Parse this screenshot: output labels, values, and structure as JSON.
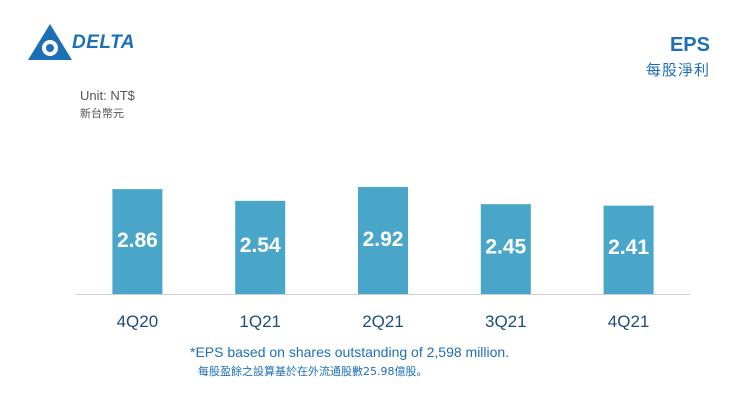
{
  "brand": {
    "name": "DELTA"
  },
  "header": {
    "title_en": "EPS",
    "title_zh": "每股淨利"
  },
  "unit": {
    "en": "Unit: NT$",
    "zh": "新台幣元"
  },
  "footnote": {
    "en": "*EPS based on shares outstanding of 2,598 million.",
    "zh": "每股盈餘之設算基於在外流通股數25.98億股。"
  },
  "colors": {
    "bar": "#4aa6c9",
    "label": "#ffffff",
    "axis": "#cfcfcf",
    "tick": "#1d4e7a",
    "brand": "#1d6fb8"
  },
  "chart_data": {
    "type": "bar",
    "title": "EPS",
    "xlabel": "",
    "ylabel": "Unit: NT$",
    "categories": [
      "4Q20",
      "1Q21",
      "2Q21",
      "3Q21",
      "4Q21"
    ],
    "values": [
      2.86,
      2.54,
      2.92,
      2.45,
      2.41
    ],
    "value_labels": [
      "2.86",
      "2.54",
      "2.92",
      "2.45",
      "2.41"
    ],
    "ylim": [
      0,
      3.0
    ],
    "grid": false,
    "legend": "none"
  }
}
